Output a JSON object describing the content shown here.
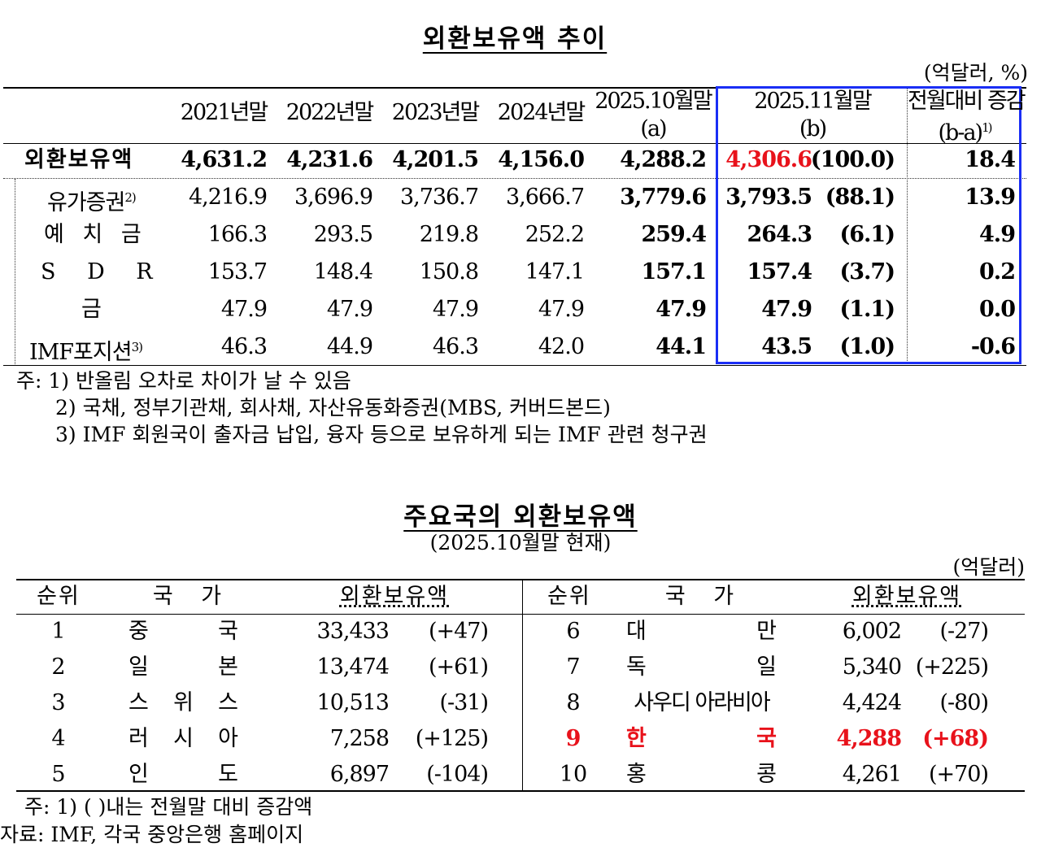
{
  "reserves_trend": {
    "title": "외환보유액 추이",
    "unit": "(억달러, %)",
    "headers": {
      "y2021": "2021년말",
      "y2022": "2022년말",
      "y2023": "2023년말",
      "y2024": "2024년말",
      "oct2025": "2025.10월말",
      "oct2025_mark": "(a)",
      "nov2025": "2025.11월말",
      "nov2025_mark": "(b)",
      "change": "전월대비 증감",
      "change_mark": "(b-a)",
      "change_note": "1)"
    },
    "rows": [
      {
        "label": "외환보유액",
        "note": "",
        "y2021": "4,631.2",
        "y2022": "4,231.6",
        "y2023": "4,201.5",
        "y2024": "4,156.0",
        "oct2025": "4,288.2",
        "nov2025": "4,306.6",
        "share": "(100.0)",
        "change": "18.4"
      },
      {
        "label": "유가증권",
        "note": "2)",
        "y2021": "4,216.9",
        "y2022": "3,696.9",
        "y2023": "3,736.7",
        "y2024": "3,666.7",
        "oct2025": "3,779.6",
        "nov2025": "3,793.5",
        "share": "(88.1)",
        "change": "13.9"
      },
      {
        "label": "예 치 금",
        "note": "",
        "y2021": "166.3",
        "y2022": "293.5",
        "y2023": "219.8",
        "y2024": "252.2",
        "oct2025": "259.4",
        "nov2025": "264.3",
        "share": "(6.1)",
        "change": "4.9"
      },
      {
        "label": "S D R",
        "note": "",
        "y2021": "153.7",
        "y2022": "148.4",
        "y2023": "150.8",
        "y2024": "147.1",
        "oct2025": "157.1",
        "nov2025": "157.4",
        "share": "(3.7)",
        "change": "0.2"
      },
      {
        "label": "금",
        "note": "",
        "y2021": "47.9",
        "y2022": "47.9",
        "y2023": "47.9",
        "y2024": "47.9",
        "oct2025": "47.9",
        "nov2025": "47.9",
        "share": "(1.1)",
        "change": "0.0"
      },
      {
        "label": "IMF포지션",
        "note": "3)",
        "y2021": "46.3",
        "y2022": "44.9",
        "y2023": "46.3",
        "y2024": "42.0",
        "oct2025": "44.1",
        "nov2025": "43.5",
        "share": "(1.0)",
        "change": "-0.6"
      }
    ],
    "notes": [
      "주: 1) 반올림 오차로 차이가 날 수 있음",
      "2) 국채, 정부기관채, 회사채, 자산유동화증권(MBS, 커버드본드)",
      "3) IMF 회원국이 출자금 납입, 융자 등으로 보유하게 되는 IMF 관련 청구권"
    ]
  },
  "major_countries": {
    "title": "주요국의 외환보유액",
    "subtitle": "(2025.10월말 현재)",
    "unit": "(억달러)",
    "headers": {
      "rank": "순위",
      "country": "국 가",
      "reserves": "외환보유액"
    },
    "left": [
      {
        "rank": "1",
        "country": [
          "중",
          "국"
        ],
        "value": "33,433",
        "change": "(+47)"
      },
      {
        "rank": "2",
        "country": [
          "일",
          "본"
        ],
        "value": "13,474",
        "change": "(+61)"
      },
      {
        "rank": "3",
        "country": [
          "스",
          "위",
          "스"
        ],
        "value": "10,513",
        "change": "(-31)"
      },
      {
        "rank": "4",
        "country": [
          "러",
          "시",
          "아"
        ],
        "value": "7,258",
        "change": "(+125)"
      },
      {
        "rank": "5",
        "country": [
          "인",
          "도"
        ],
        "value": "6,897",
        "change": "(-104)"
      }
    ],
    "right": [
      {
        "rank": "6",
        "country": [
          "대",
          "만"
        ],
        "value": "6,002",
        "change": "(-27)"
      },
      {
        "rank": "7",
        "country": [
          "독",
          "일"
        ],
        "value": "5,340",
        "change": "(+225)"
      },
      {
        "rank": "8",
        "country": [
          "사우디 아라비아"
        ],
        "value": "4,424",
        "change": "(-80)"
      },
      {
        "rank": "9",
        "country": [
          "한",
          "국"
        ],
        "value": "4,288",
        "change": "(+68)",
        "highlight": true
      },
      {
        "rank": "10",
        "country": [
          "홍",
          "콩"
        ],
        "value": "4,261",
        "change": "(+70)"
      }
    ],
    "notes": [
      "주: 1) (  )내는 전월말 대비 증감액",
      "자료: IMF, 각국 중앙은행 홈페이지"
    ]
  },
  "colors": {
    "highlight_red": "#e8121b",
    "box_blue": "#1a2ef5"
  }
}
